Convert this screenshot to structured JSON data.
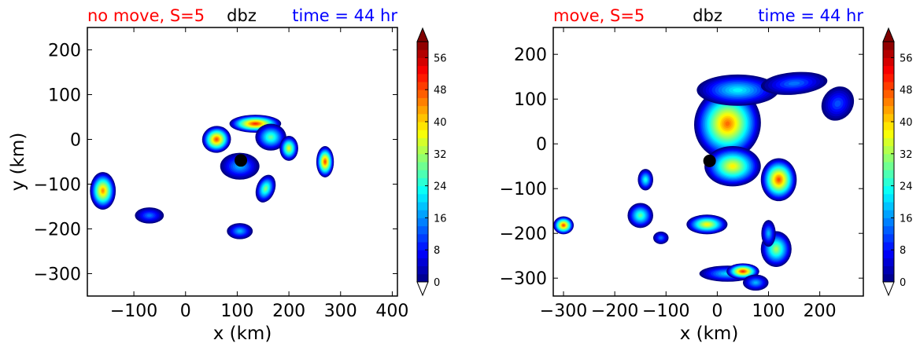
{
  "chart_data": [
    {
      "type": "contourf",
      "title_left": "no move, S=5",
      "title_center": "dbz",
      "title_right": "time = 44 hr",
      "title_colors": {
        "left": "#ff0000",
        "center": "#000000",
        "right": "#0000ff"
      },
      "xlabel": "x (km)",
      "ylabel": "y (km)",
      "xlim": [
        -190,
        410
      ],
      "ylim": [
        -350,
        250
      ],
      "xticks": [
        -100,
        0,
        100,
        200,
        300,
        400
      ],
      "xtick_labels": [
        "−100",
        "0",
        "100",
        "200",
        "300",
        "400"
      ],
      "yticks": [
        200,
        100,
        0,
        -100,
        -200,
        -300
      ],
      "ytick_labels": [
        "200",
        "100",
        "0",
        "−100",
        "−200",
        "−300"
      ],
      "marker": {
        "x": 107,
        "y": -47,
        "color": "#000000"
      },
      "cells": [
        {
          "x": 60,
          "y": 0,
          "rx": 28,
          "ry": 30,
          "peak": 50,
          "rot": -10
        },
        {
          "x": 135,
          "y": 35,
          "rx": 50,
          "ry": 20,
          "peak": 52,
          "rot": 0
        },
        {
          "x": 165,
          "y": 5,
          "rx": 30,
          "ry": 30,
          "peak": 30,
          "rot": 0
        },
        {
          "x": 200,
          "y": -20,
          "rx": 18,
          "ry": 28,
          "peak": 38,
          "rot": 0
        },
        {
          "x": 105,
          "y": -60,
          "rx": 38,
          "ry": 30,
          "peak": 20,
          "rot": 0
        },
        {
          "x": 155,
          "y": -110,
          "rx": 18,
          "ry": 32,
          "peak": 32,
          "rot": 20
        },
        {
          "x": 270,
          "y": -50,
          "rx": 17,
          "ry": 35,
          "peak": 50,
          "rot": 0
        },
        {
          "x": -160,
          "y": -115,
          "rx": 25,
          "ry": 42,
          "peak": 46,
          "rot": 0
        },
        {
          "x": -70,
          "y": -170,
          "rx": 28,
          "ry": 18,
          "peak": 16,
          "rot": 0
        },
        {
          "x": 105,
          "y": -205,
          "rx": 25,
          "ry": 18,
          "peak": 20,
          "rot": 0
        }
      ]
    },
    {
      "type": "contourf",
      "title_left": "move, S=5",
      "title_center": "dbz",
      "title_right": "time = 44 hr",
      "title_colors": {
        "left": "#ff0000",
        "center": "#000000",
        "right": "#0000ff"
      },
      "xlabel": "x (km)",
      "ylabel": "",
      "xlim": [
        -320,
        285
      ],
      "ylim": [
        -340,
        260
      ],
      "xticks": [
        -300,
        -200,
        -100,
        0,
        100,
        200
      ],
      "xtick_labels": [
        "−300",
        "−200",
        "−100",
        "0",
        "100",
        "200"
      ],
      "yticks": [
        200,
        100,
        0,
        -100,
        -200,
        -300
      ],
      "ytick_labels": [
        "200",
        "100",
        "0",
        "−100",
        "−200",
        "−300"
      ],
      "marker": {
        "x": -15,
        "y": -38,
        "color": "#000000"
      },
      "cells": [
        {
          "x": 20,
          "y": 45,
          "rx": 65,
          "ry": 80,
          "peak": 48,
          "rot": 10
        },
        {
          "x": 40,
          "y": 120,
          "rx": 80,
          "ry": 35,
          "peak": 24,
          "rot": 0
        },
        {
          "x": 30,
          "y": -50,
          "rx": 55,
          "ry": 45,
          "peak": 40,
          "rot": 0
        },
        {
          "x": 150,
          "y": 135,
          "rx": 65,
          "ry": 25,
          "peak": 16,
          "rot": -5
        },
        {
          "x": 235,
          "y": 90,
          "rx": 30,
          "ry": 40,
          "peak": 14,
          "rot": 35
        },
        {
          "x": 120,
          "y": -80,
          "rx": 35,
          "ry": 48,
          "peak": 50,
          "rot": 0
        },
        {
          "x": -300,
          "y": -182,
          "rx": 20,
          "ry": 20,
          "peak": 50,
          "rot": 0
        },
        {
          "x": -140,
          "y": -80,
          "rx": 15,
          "ry": 24,
          "peak": 26,
          "rot": 0
        },
        {
          "x": -150,
          "y": -160,
          "rx": 25,
          "ry": 28,
          "peak": 30,
          "rot": 0
        },
        {
          "x": -110,
          "y": -210,
          "rx": 15,
          "ry": 14,
          "peak": 16,
          "rot": 0
        },
        {
          "x": -20,
          "y": -180,
          "rx": 40,
          "ry": 22,
          "peak": 40,
          "rot": 0
        },
        {
          "x": 20,
          "y": -290,
          "rx": 55,
          "ry": 18,
          "peak": 22,
          "rot": 0
        },
        {
          "x": 50,
          "y": -285,
          "rx": 32,
          "ry": 18,
          "peak": 52,
          "rot": 0
        },
        {
          "x": 115,
          "y": -235,
          "rx": 30,
          "ry": 40,
          "peak": 34,
          "rot": 0
        },
        {
          "x": 75,
          "y": -310,
          "rx": 25,
          "ry": 18,
          "peak": 20,
          "rot": 0
        },
        {
          "x": 100,
          "y": -200,
          "rx": 14,
          "ry": 30,
          "peak": 20,
          "rot": 0
        }
      ]
    }
  ],
  "colorbar": {
    "levels": [
      0,
      60
    ],
    "step": 2,
    "ticks": [
      0,
      8,
      16,
      24,
      32,
      40,
      48,
      56
    ],
    "tick_labels": [
      "0",
      "8",
      "16",
      "24",
      "32",
      "40",
      "48",
      "56"
    ],
    "extend": "both",
    "over_color": "#800000",
    "under_color": "#ffffff"
  }
}
